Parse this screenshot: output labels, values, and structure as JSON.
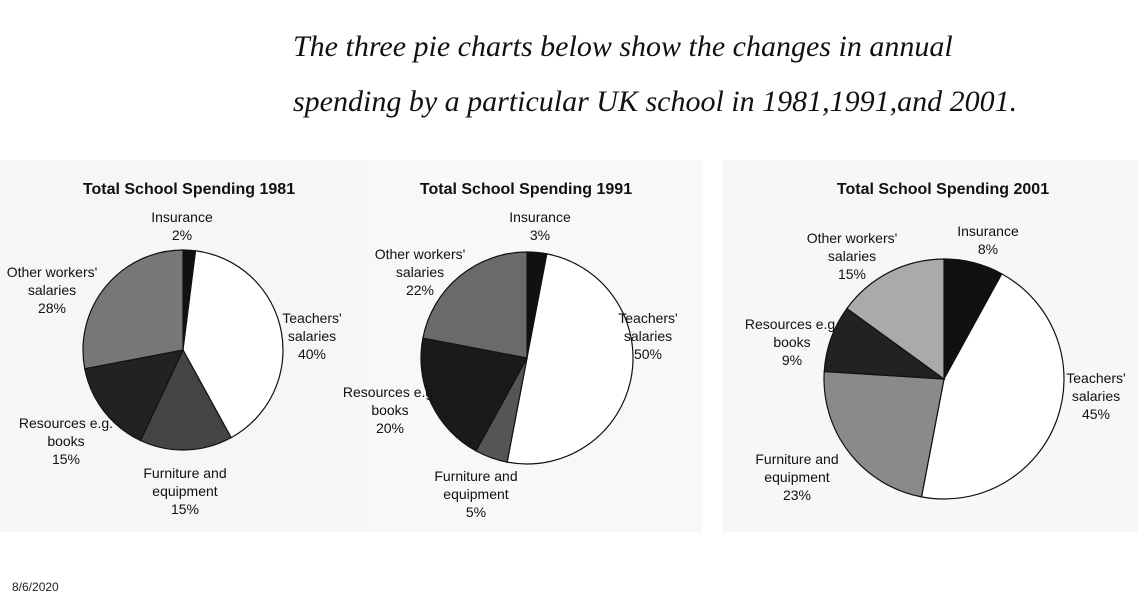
{
  "heading": {
    "lines": [
      "The three pie charts below show the changes in annual",
      "spending by a particular UK school in 1981,1991,and 2001."
    ]
  },
  "chart_data": [
    {
      "type": "pie",
      "title": "Total School Spending 1981",
      "categories": [
        "Insurance",
        "Teachers' salaries",
        "Furniture and equipment",
        "Resources e.g. books",
        "Other workers' salaries"
      ],
      "values": [
        2,
        40,
        15,
        15,
        28
      ],
      "value_labels": [
        "2%",
        "40%",
        "15%",
        "15%",
        "28%"
      ],
      "colors": [
        "#111111",
        "#ffffff",
        "#444444",
        "#222222",
        "#777777"
      ]
    },
    {
      "type": "pie",
      "title": "Total School Spending 1991",
      "categories": [
        "Insurance",
        "Teachers' salaries",
        "Furniture and equipment",
        "Resources e.g. books",
        "Other workers' salaries"
      ],
      "values": [
        3,
        50,
        5,
        20,
        22
      ],
      "value_labels": [
        "3%",
        "50%",
        "5%",
        "20%",
        "22%"
      ],
      "colors": [
        "#111111",
        "#ffffff",
        "#555555",
        "#1a1a1a",
        "#6a6a6a"
      ]
    },
    {
      "type": "pie",
      "title": "Total School Spending 2001",
      "categories": [
        "Insurance",
        "Teachers' salaries",
        "Furniture and equipment",
        "Resources e.g. books",
        "Other workers' salaries"
      ],
      "values": [
        8,
        45,
        23,
        9,
        15
      ],
      "value_labels": [
        "8%",
        "45%",
        "23%",
        "9%",
        "15%"
      ],
      "colors": [
        "#111111",
        "#ffffff",
        "#8a8a8a",
        "#222222",
        "#aaaaaa"
      ]
    }
  ],
  "footer": {
    "date": "8/6/2020"
  }
}
